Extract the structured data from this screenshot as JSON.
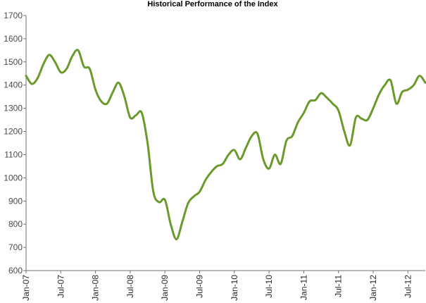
{
  "chart_data": {
    "type": "line",
    "title": "Historical Performance of the Index",
    "xlabel": "",
    "ylabel": "",
    "ylim": [
      600,
      1700
    ],
    "yticks": [
      600,
      700,
      800,
      900,
      1000,
      1100,
      1200,
      1300,
      1400,
      1500,
      1600,
      1700
    ],
    "xlim": [
      "2007-01",
      "2012-10"
    ],
    "xticks": [
      "Jan-07",
      "Jul-07",
      "Jan-08",
      "Jul-08",
      "Jan-09",
      "Jul-09",
      "Jan-10",
      "Jul-10",
      "Jan-11",
      "Jul-11",
      "Jan-12",
      "Jul-12"
    ],
    "grid": false,
    "line_color": "#6a9a2b",
    "series": [
      {
        "x": [
          "2007-01",
          "2007-02",
          "2007-03",
          "2007-04",
          "2007-05",
          "2007-06",
          "2007-07",
          "2007-08",
          "2007-09",
          "2007-10",
          "2007-11",
          "2007-12",
          "2008-01",
          "2008-02",
          "2008-03",
          "2008-04",
          "2008-05",
          "2008-06",
          "2008-07",
          "2008-08",
          "2008-09",
          "2008-10",
          "2008-11",
          "2008-12",
          "2009-01",
          "2009-02",
          "2009-03",
          "2009-04",
          "2009-05",
          "2009-06",
          "2009-07",
          "2009-08",
          "2009-09",
          "2009-10",
          "2009-11",
          "2009-12",
          "2010-01",
          "2010-02",
          "2010-03",
          "2010-04",
          "2010-05",
          "2010-06",
          "2010-07",
          "2010-08",
          "2010-09",
          "2010-10",
          "2010-11",
          "2010-12",
          "2011-01",
          "2011-02",
          "2011-03",
          "2011-04",
          "2011-05",
          "2011-06",
          "2011-07",
          "2011-08",
          "2011-09",
          "2011-10",
          "2011-11",
          "2011-12",
          "2012-01",
          "2012-02",
          "2012-03",
          "2012-04",
          "2012-05",
          "2012-06",
          "2012-07",
          "2012-08",
          "2012-09",
          "2012-10"
        ],
        "values": [
          1440,
          1405,
          1430,
          1490,
          1530,
          1500,
          1455,
          1470,
          1525,
          1550,
          1480,
          1470,
          1380,
          1330,
          1320,
          1370,
          1410,
          1350,
          1260,
          1270,
          1280,
          1150,
          940,
          895,
          905,
          800,
          735,
          810,
          890,
          920,
          940,
          990,
          1025,
          1050,
          1060,
          1100,
          1120,
          1080,
          1130,
          1180,
          1190,
          1080,
          1040,
          1100,
          1060,
          1160,
          1180,
          1240,
          1280,
          1330,
          1335,
          1365,
          1345,
          1320,
          1290,
          1200,
          1140,
          1260,
          1255,
          1250,
          1300,
          1360,
          1400,
          1420,
          1320,
          1370,
          1380,
          1400,
          1440,
          1410
        ]
      }
    ]
  }
}
